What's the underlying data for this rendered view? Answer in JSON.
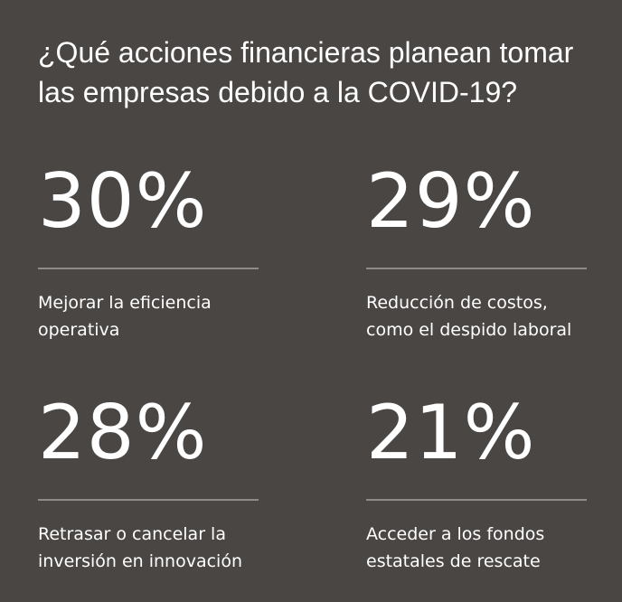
{
  "title_lines": [
    "¿Qué acciones financieras planean tomar",
    "las empresas debido a la COVID-19?"
  ],
  "chart_data": {
    "type": "table",
    "title": "¿Qué acciones financieras planean tomar las empresas debido a la COVID-19?",
    "unit": "%",
    "items": [
      {
        "value": 30,
        "display": "30%",
        "label_lines": [
          "Mejorar la eficiencia",
          "operativa"
        ]
      },
      {
        "value": 29,
        "display": "29%",
        "label_lines": [
          "Reducción de costos,",
          "como el despido laboral"
        ]
      },
      {
        "value": 28,
        "display": "28%",
        "label_lines": [
          "Retrasar o cancelar la",
          "inversión en innovación"
        ]
      },
      {
        "value": 21,
        "display": "21%",
        "label_lines": [
          "Acceder a los fondos",
          "estatales de rescate"
        ]
      }
    ]
  },
  "colors": {
    "background": "#4a4644",
    "text": "#ffffff",
    "divider": "#8f8b88"
  }
}
